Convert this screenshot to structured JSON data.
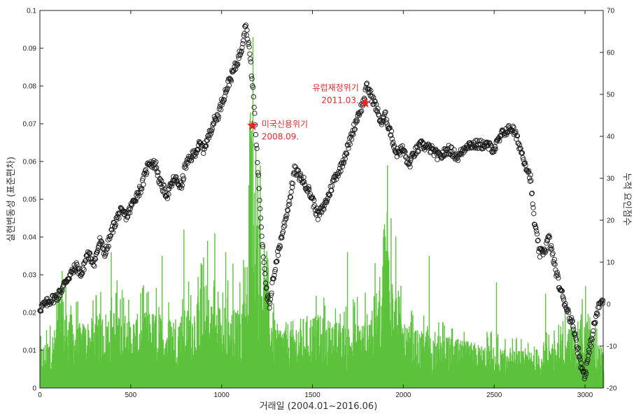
{
  "chart_data": {
    "type": "bar+line",
    "xlabel": "거래일 (2004.01~2016.06)",
    "ylabel_left": "실현변동성 (표준편차)",
    "ylabel_right": "누적 요인점수",
    "xlim": [
      0,
      3100
    ],
    "ylim_left": [
      0,
      0.1
    ],
    "ylim_right": [
      -20,
      70
    ],
    "x_ticks": [
      "0",
      "500",
      "1000",
      "1500",
      "2000",
      "2500",
      "3000"
    ],
    "y_left_ticks": [
      "0",
      "0.01",
      "0.02",
      "0.03",
      "0.04",
      "0.05",
      "0.06",
      "0.07",
      "0.08",
      "0.09",
      "0.1"
    ],
    "y_right_ticks": [
      "-20",
      "-10",
      "0",
      "10",
      "20",
      "30",
      "40",
      "50",
      "60",
      "70"
    ],
    "colors": {
      "bars": "#5cc23c",
      "markers": "#1a1a1a",
      "stars": "#e2282a",
      "annotations": "#e2282a"
    },
    "series": [
      {
        "kind": "bar",
        "axis": "left",
        "description_x": "trading day",
        "envelope_x": [
          0,
          80,
          100,
          200,
          300,
          400,
          500,
          600,
          700,
          800,
          900,
          1000,
          1100,
          1140,
          1160,
          1180,
          1200,
          1250,
          1300,
          1400,
          1500,
          1600,
          1700,
          1800,
          1880,
          1900,
          1950,
          2000,
          2100,
          2200,
          2300,
          2400,
          2500,
          2600,
          2700,
          2800,
          2900,
          3000,
          3050,
          3100
        ],
        "envelope_y": [
          0.011,
          0.016,
          0.027,
          0.017,
          0.019,
          0.022,
          0.019,
          0.021,
          0.019,
          0.021,
          0.026,
          0.022,
          0.021,
          0.035,
          0.085,
          0.06,
          0.05,
          0.026,
          0.017,
          0.018,
          0.02,
          0.018,
          0.017,
          0.02,
          0.03,
          0.055,
          0.033,
          0.017,
          0.015,
          0.014,
          0.013,
          0.012,
          0.011,
          0.01,
          0.01,
          0.012,
          0.016,
          0.019,
          0.014,
          0.01
        ],
        "spikes": [
          {
            "x": 1170,
            "y": 0.093
          },
          {
            "x": 1155,
            "y": 0.073
          },
          {
            "x": 1185,
            "y": 0.064
          },
          {
            "x": 1195,
            "y": 0.057
          },
          {
            "x": 1910,
            "y": 0.059
          },
          {
            "x": 1930,
            "y": 0.045
          },
          {
            "x": 1890,
            "y": 0.042
          },
          {
            "x": 390,
            "y": 0.036
          },
          {
            "x": 670,
            "y": 0.035
          },
          {
            "x": 790,
            "y": 0.042
          },
          {
            "x": 960,
            "y": 0.041
          },
          {
            "x": 1020,
            "y": 0.036
          },
          {
            "x": 1060,
            "y": 0.033
          },
          {
            "x": 920,
            "y": 0.039
          },
          {
            "x": 1690,
            "y": 0.036
          },
          {
            "x": 2140,
            "y": 0.035
          },
          {
            "x": 2510,
            "y": 0.028
          },
          {
            "x": 2780,
            "y": 0.025
          },
          {
            "x": 3000,
            "y": 0.027
          },
          {
            "x": 120,
            "y": 0.031
          }
        ]
      },
      {
        "kind": "line-markers",
        "axis": "right",
        "description_x": "trading day",
        "x": [
          0,
          60,
          100,
          150,
          200,
          230,
          260,
          300,
          330,
          360,
          400,
          440,
          480,
          520,
          560,
          600,
          640,
          660,
          700,
          740,
          780,
          800,
          850,
          880,
          900,
          930,
          950,
          980,
          1000,
          1040,
          1080,
          1110,
          1130,
          1150,
          1175,
          1200,
          1220,
          1250,
          1265,
          1280,
          1300,
          1330,
          1360,
          1380,
          1400,
          1440,
          1470,
          1500,
          1530,
          1560,
          1590,
          1620,
          1650,
          1700,
          1750,
          1780,
          1800,
          1820,
          1850,
          1880,
          1900,
          1930,
          1960,
          2000,
          2030,
          2060,
          2100,
          2150,
          2200,
          2250,
          2300,
          2350,
          2400,
          2450,
          2500,
          2550,
          2600,
          2630,
          2660,
          2700,
          2720,
          2750,
          2780,
          2800,
          2830,
          2860,
          2900,
          2940,
          2980,
          3000,
          3020,
          3050,
          3080,
          3100
        ],
        "y": [
          -1,
          1,
          2,
          6,
          9,
          7,
          12,
          10,
          15,
          12,
          18,
          22,
          21,
          25,
          28,
          34,
          33,
          29,
          26,
          30,
          28,
          33,
          36,
          38,
          37,
          40,
          43,
          45,
          48,
          53,
          57,
          61,
          67,
          62,
          50,
          32,
          17,
          2,
          -1,
          5,
          10,
          16,
          22,
          26,
          32,
          30,
          28,
          25,
          21,
          23,
          26,
          30,
          32,
          38,
          45,
          48,
          52,
          50,
          47,
          43,
          45,
          41,
          36,
          37,
          33,
          36,
          38,
          37,
          35,
          37,
          35,
          38,
          38,
          38,
          37,
          41,
          42,
          39,
          35,
          30,
          20,
          12,
          13,
          16,
          10,
          4,
          -1,
          -6,
          -15,
          -17,
          -12,
          -5,
          0,
          1
        ]
      }
    ],
    "annotations": [
      {
        "label": "미국신용위기",
        "sublabel": "2008.09.",
        "x": 1170,
        "y_left": 0.0695
      },
      {
        "label": "유럽재정위기",
        "sublabel": "2011.03.",
        "x": 1790,
        "y_left": 0.0755
      }
    ]
  }
}
